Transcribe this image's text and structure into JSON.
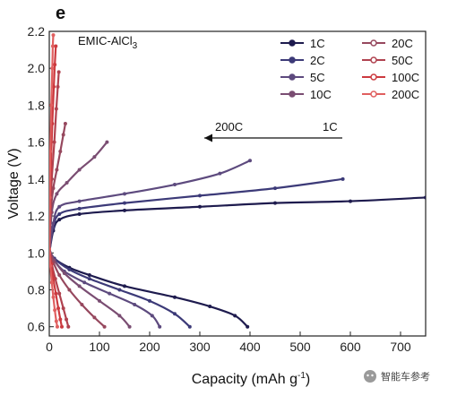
{
  "chart_data": {
    "type": "line",
    "panel_label": "e",
    "electrolyte_label": "EMIC-AlCl",
    "electrolyte_subscript": "3",
    "xlabel": "Capacity (mAh g",
    "xlabel_superscript": "-1",
    "xlabel_suffix": ")",
    "ylabel": "Voltage (V)",
    "xlim": [
      0,
      750
    ],
    "ylim": [
      0.55,
      2.2
    ],
    "x_ticks": [
      0,
      100,
      200,
      300,
      400,
      500,
      600,
      700
    ],
    "x_tick_labels": [
      "0",
      "100",
      "200",
      "300",
      "400",
      "500",
      "600",
      "700"
    ],
    "y_ticks": [
      0.6,
      0.8,
      1.0,
      1.2,
      1.4,
      1.6,
      1.8,
      2.0,
      2.2
    ],
    "y_tick_labels": [
      "0.6",
      "0.8",
      "1.0",
      "1.2",
      "1.4",
      "1.6",
      "1.8",
      "2.0",
      "2.2"
    ],
    "grid": false,
    "legend_position": "top-right",
    "annotation": {
      "left": "200C",
      "right": "1C"
    },
    "series": [
      {
        "name": "1C",
        "color": "#1e1b4e",
        "charge": {
          "x": [
            0,
            8,
            20,
            60,
            150,
            300,
            450,
            600,
            750
          ],
          "y": [
            1.0,
            1.12,
            1.18,
            1.21,
            1.23,
            1.25,
            1.27,
            1.28,
            1.3
          ]
        },
        "discharge": {
          "x": [
            0,
            10,
            40,
            80,
            150,
            250,
            320,
            370,
            395
          ],
          "y": [
            1.02,
            0.97,
            0.92,
            0.88,
            0.82,
            0.76,
            0.71,
            0.66,
            0.6
          ]
        }
      },
      {
        "name": "2C",
        "color": "#3c3a78",
        "charge": {
          "x": [
            0,
            8,
            20,
            60,
            150,
            300,
            450,
            585
          ],
          "y": [
            1.0,
            1.14,
            1.21,
            1.24,
            1.27,
            1.31,
            1.35,
            1.4
          ]
        },
        "discharge": {
          "x": [
            0,
            10,
            40,
            80,
            140,
            200,
            250,
            280
          ],
          "y": [
            1.02,
            0.97,
            0.91,
            0.86,
            0.8,
            0.74,
            0.67,
            0.6
          ]
        }
      },
      {
        "name": "5C",
        "color": "#5d4a7e",
        "charge": {
          "x": [
            0,
            8,
            20,
            60,
            150,
            250,
            340,
            400
          ],
          "y": [
            1.0,
            1.16,
            1.25,
            1.28,
            1.32,
            1.37,
            1.43,
            1.5
          ]
        },
        "discharge": {
          "x": [
            0,
            10,
            30,
            70,
            120,
            170,
            205,
            220
          ],
          "y": [
            1.02,
            0.96,
            0.9,
            0.84,
            0.78,
            0.72,
            0.66,
            0.6
          ]
        }
      },
      {
        "name": "10C",
        "color": "#7a4d72",
        "charge": {
          "x": [
            0,
            5,
            15,
            35,
            60,
            90,
            115
          ],
          "y": [
            1.0,
            1.22,
            1.32,
            1.38,
            1.45,
            1.52,
            1.6
          ]
        },
        "discharge": {
          "x": [
            0,
            10,
            30,
            60,
            100,
            140,
            160
          ],
          "y": [
            1.02,
            0.96,
            0.89,
            0.82,
            0.74,
            0.66,
            0.6
          ]
        }
      },
      {
        "name": "20C",
        "color": "#96485e",
        "charge": {
          "x": [
            0,
            3,
            8,
            15,
            22,
            28,
            32
          ],
          "y": [
            1.0,
            1.22,
            1.35,
            1.45,
            1.55,
            1.64,
            1.7
          ]
        },
        "discharge": {
          "x": [
            0,
            8,
            20,
            40,
            65,
            90,
            110
          ],
          "y": [
            1.02,
            0.95,
            0.88,
            0.8,
            0.72,
            0.65,
            0.6
          ]
        }
      },
      {
        "name": "50C",
        "color": "#b0424f",
        "charge": {
          "x": [
            0,
            2,
            5,
            10,
            14,
            17,
            19
          ],
          "y": [
            1.0,
            1.22,
            1.4,
            1.6,
            1.78,
            1.9,
            1.98
          ]
        },
        "discharge": {
          "x": [
            0,
            5,
            12,
            20,
            28,
            34,
            38
          ],
          "y": [
            1.02,
            0.94,
            0.86,
            0.78,
            0.7,
            0.64,
            0.6
          ]
        }
      },
      {
        "name": "100C",
        "color": "#cc3a3f",
        "charge": {
          "x": [
            0,
            1,
            3,
            6,
            9,
            11,
            13
          ],
          "y": [
            1.0,
            1.25,
            1.45,
            1.7,
            1.9,
            2.02,
            2.12
          ]
        },
        "discharge": {
          "x": [
            0,
            4,
            8,
            13,
            18,
            22,
            25
          ],
          "y": [
            1.02,
            0.94,
            0.86,
            0.78,
            0.7,
            0.64,
            0.6
          ]
        }
      },
      {
        "name": "200C",
        "color": "#e05f5f",
        "charge": {
          "x": [
            0,
            1,
            2,
            4,
            6,
            7,
            8
          ],
          "y": [
            1.0,
            1.3,
            1.55,
            1.8,
            2.0,
            2.12,
            2.18
          ]
        },
        "discharge": {
          "x": [
            0,
            2,
            5,
            8,
            11,
            14,
            16
          ],
          "y": [
            1.02,
            0.93,
            0.84,
            0.76,
            0.69,
            0.63,
            0.6
          ]
        }
      }
    ]
  },
  "watermark": "智能车参考",
  "watermark_icon": "wechat-icon"
}
